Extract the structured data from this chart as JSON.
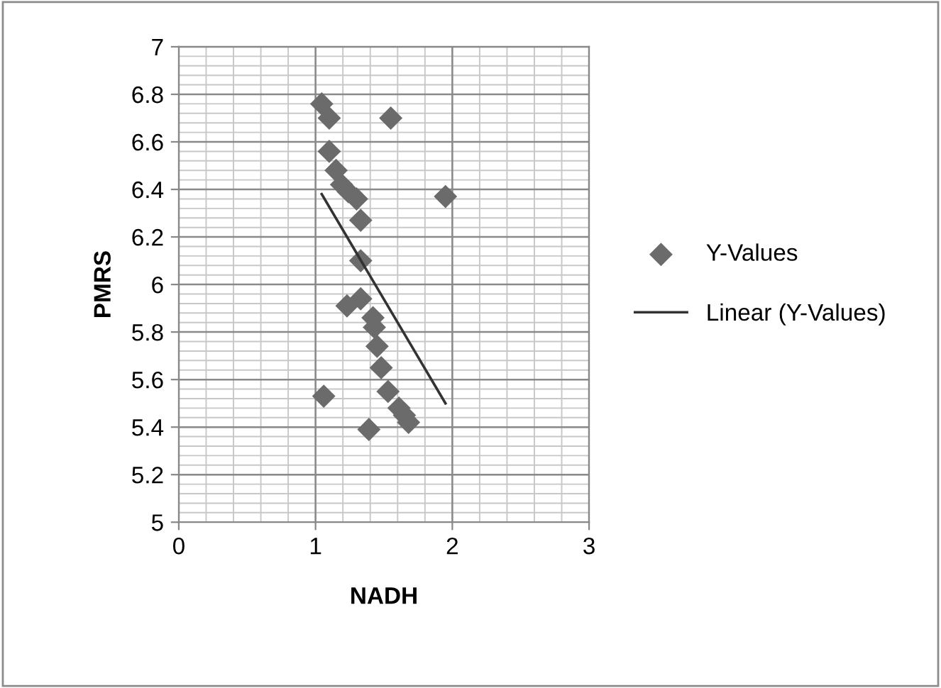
{
  "chart_data": {
    "type": "scatter",
    "xlabel": "NADH",
    "ylabel": "PMRS",
    "xlim": [
      0,
      3
    ],
    "xticks": [
      0,
      1,
      2,
      3
    ],
    "ylim": [
      5,
      7
    ],
    "yticks": [
      5,
      {
        "value": 5.2,
        "label": "5.2"
      },
      {
        "value": 5.4,
        "label": "5.4"
      },
      {
        "value": 5.6,
        "label": "5.6"
      },
      {
        "value": 5.8,
        "label": "5.8"
      },
      6,
      {
        "value": 6.2,
        "label": "6.2"
      },
      {
        "value": 6.4,
        "label": "6.4"
      },
      {
        "value": 6.6,
        "label": "6.6"
      },
      {
        "value": 6.8,
        "label": "6.8"
      },
      7
    ],
    "grid": true,
    "legend": "right",
    "marker": "diamond",
    "series": [
      {
        "name": "Y-Values",
        "color": "#6b6b6b",
        "x": [
          1.045,
          1.1,
          1.55,
          1.1,
          1.15,
          1.19,
          1.24,
          1.3,
          1.95,
          1.33,
          1.33,
          1.23,
          1.33,
          1.42,
          1.43,
          1.45,
          1.48,
          1.53,
          1.61,
          1.65,
          1.68,
          1.06,
          1.39
        ],
        "values": [
          6.76,
          6.7,
          6.7,
          6.56,
          6.48,
          6.42,
          6.39,
          6.36,
          6.37,
          6.27,
          6.1,
          5.91,
          5.94,
          5.86,
          5.82,
          5.74,
          5.65,
          5.55,
          5.48,
          5.45,
          5.42,
          5.53,
          5.39
        ]
      },
      {
        "name": "Linear (Y-Values)",
        "type": "line",
        "color": "#333333",
        "line_style": "solid",
        "marker": "none",
        "x": [
          1.045,
          1.95
        ],
        "values": [
          6.38,
          5.5
        ]
      }
    ]
  }
}
